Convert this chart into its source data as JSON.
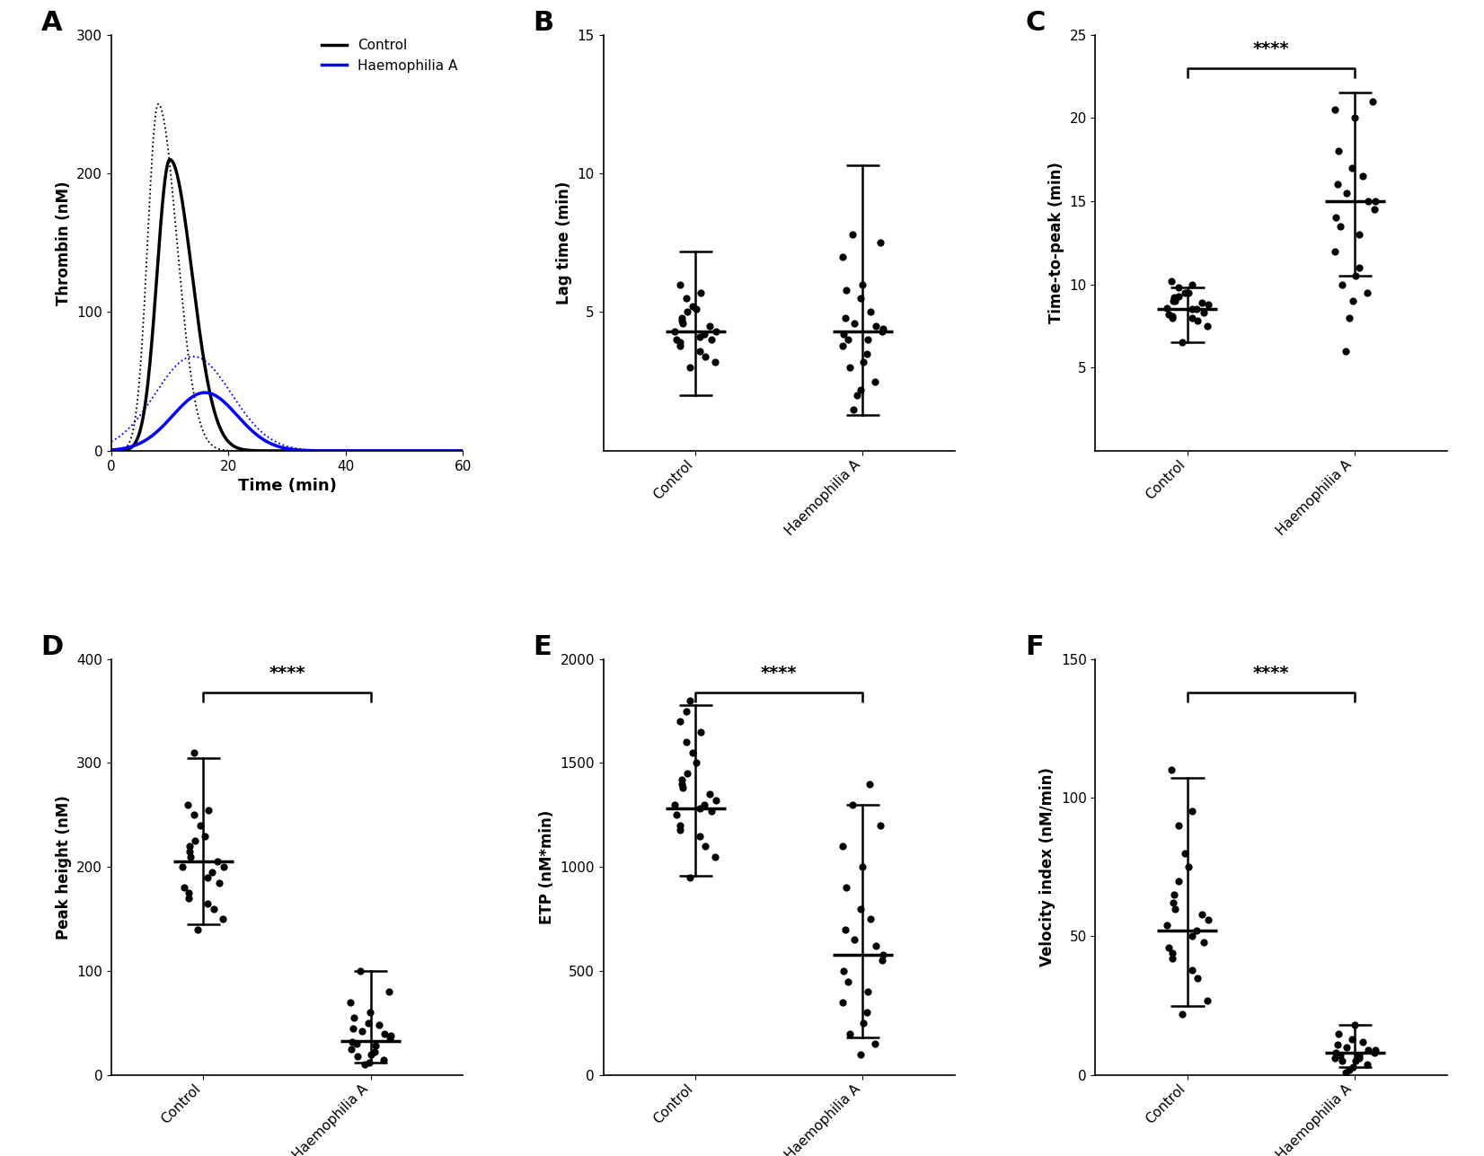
{
  "panel_A": {
    "xlim": [
      0,
      60
    ],
    "ylim": [
      0,
      300
    ],
    "xlabel": "Time (min)",
    "ylabel": "Thrombin (nM)",
    "yticks": [
      0,
      100,
      200,
      300
    ],
    "xticks": [
      0,
      20,
      40,
      60
    ],
    "legend": [
      "Control",
      "Haemophilia A"
    ],
    "control_color": "#000000",
    "haem_color": "#0000FF"
  },
  "panel_B": {
    "ylabel": "Lag time (min)",
    "ylim": [
      0,
      15
    ],
    "yticks": [
      5,
      10,
      15
    ],
    "control_median": 4.3,
    "control_q1": 2.0,
    "control_q3": 7.2,
    "haem_median": 4.3,
    "haem_q1": 1.3,
    "haem_q3": 10.3,
    "control_dots": [
      3.0,
      3.2,
      3.4,
      3.6,
      3.8,
      3.9,
      4.0,
      4.0,
      4.1,
      4.2,
      4.3,
      4.3,
      4.5,
      4.6,
      4.7,
      4.8,
      5.0,
      5.1,
      5.2,
      5.5,
      5.7,
      6.0
    ],
    "haem_dots": [
      1.5,
      2.0,
      2.2,
      2.5,
      3.0,
      3.2,
      3.5,
      3.8,
      4.0,
      4.0,
      4.2,
      4.3,
      4.4,
      4.5,
      4.6,
      4.8,
      5.0,
      5.5,
      5.8,
      6.0,
      7.0,
      7.5,
      7.8
    ],
    "sig": ""
  },
  "panel_C": {
    "ylabel": "Time-to-peak (min)",
    "ylim": [
      0,
      25
    ],
    "yticks": [
      5,
      10,
      15,
      20,
      25
    ],
    "control_median": 8.5,
    "control_q1": 6.5,
    "control_q3": 9.8,
    "haem_median": 15.0,
    "haem_q1": 10.5,
    "haem_q3": 21.5,
    "control_dots": [
      6.5,
      7.5,
      7.8,
      8.0,
      8.0,
      8.1,
      8.2,
      8.3,
      8.5,
      8.5,
      8.6,
      8.8,
      8.9,
      9.0,
      9.0,
      9.2,
      9.3,
      9.5,
      9.5,
      9.8,
      10.0,
      10.2
    ],
    "haem_dots": [
      6.0,
      8.0,
      9.0,
      9.5,
      10.0,
      10.5,
      11.0,
      12.0,
      13.0,
      13.5,
      14.0,
      14.5,
      15.0,
      15.0,
      15.5,
      16.0,
      16.5,
      17.0,
      18.0,
      20.0,
      20.5,
      21.0
    ],
    "sig": "****"
  },
  "panel_D": {
    "ylabel": "Peak height (nM)",
    "ylim": [
      0,
      400
    ],
    "yticks": [
      0,
      100,
      200,
      300,
      400
    ],
    "control_median": 205,
    "control_q1": 145,
    "control_q3": 305,
    "haem_median": 33,
    "haem_q1": 12,
    "haem_q3": 100,
    "control_dots": [
      140,
      150,
      160,
      165,
      170,
      175,
      180,
      185,
      190,
      195,
      200,
      200,
      205,
      210,
      215,
      220,
      225,
      230,
      240,
      250,
      255,
      260,
      310
    ],
    "haem_dots": [
      10,
      12,
      15,
      18,
      20,
      22,
      25,
      28,
      30,
      32,
      35,
      38,
      40,
      42,
      45,
      48,
      50,
      55,
      60,
      70,
      80,
      100
    ],
    "sig": "****"
  },
  "panel_E": {
    "ylabel": "ETP (nM*min)",
    "ylim": [
      0,
      2000
    ],
    "yticks": [
      0,
      500,
      1000,
      1500,
      2000
    ],
    "control_median": 1280,
    "control_q1": 960,
    "control_q3": 1780,
    "haem_median": 580,
    "haem_q1": 180,
    "haem_q3": 1300,
    "control_dots": [
      950,
      1050,
      1100,
      1150,
      1180,
      1200,
      1250,
      1270,
      1280,
      1300,
      1300,
      1320,
      1350,
      1380,
      1400,
      1420,
      1450,
      1500,
      1550,
      1600,
      1650,
      1700,
      1750,
      1800
    ],
    "haem_dots": [
      100,
      150,
      200,
      250,
      300,
      350,
      400,
      450,
      500,
      550,
      580,
      620,
      650,
      700,
      750,
      800,
      900,
      1000,
      1100,
      1200,
      1300,
      1400
    ],
    "sig": "****"
  },
  "panel_F": {
    "ylabel": "Velocity index (nM/min)",
    "ylim": [
      0,
      150
    ],
    "yticks": [
      0,
      50,
      100,
      150
    ],
    "control_median": 52,
    "control_q1": 25,
    "control_q3": 107,
    "haem_median": 8,
    "haem_q1": 3,
    "haem_q3": 18,
    "control_dots": [
      22,
      27,
      35,
      38,
      42,
      44,
      46,
      48,
      50,
      52,
      54,
      56,
      58,
      60,
      62,
      65,
      70,
      75,
      80,
      90,
      95,
      110
    ],
    "haem_dots": [
      1,
      2,
      3,
      4,
      5,
      5,
      6,
      6,
      7,
      7,
      8,
      8,
      9,
      9,
      10,
      11,
      12,
      13,
      15,
      18
    ],
    "sig": "****"
  },
  "dot_color": "#000000",
  "dot_size": 35,
  "categories": [
    "Control",
    "Haemophilia A"
  ]
}
